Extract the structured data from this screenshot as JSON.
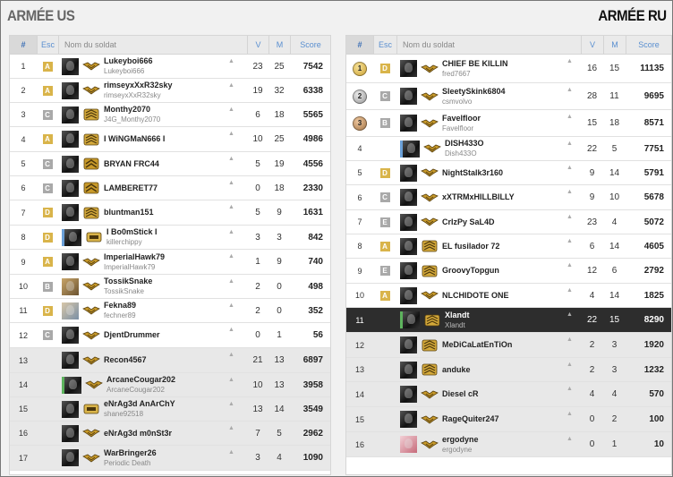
{
  "teams": {
    "left_title": "ARMÉE US",
    "right_title": "ARMÉE RU"
  },
  "headers": {
    "rank": "#",
    "esc": "Esc",
    "name": "Nom du soldat",
    "v": "V",
    "m": "M",
    "score": "Score"
  },
  "colors": {
    "esc_A": "#d9b44a",
    "esc_B": "#a9a9a9",
    "esc_C": "#a9a9a9",
    "esc_D": "#d9b44a",
    "esc_E": "#a9a9a9",
    "self_row": "#2d2d2d",
    "header_accent": "#5a8fd0"
  },
  "us_rows": [
    {
      "rank": "1",
      "esc": "A",
      "name": "Lukeyboi666",
      "sub": "Lukeyboi666",
      "v": "23",
      "m": "25",
      "score": "7542",
      "insig": "chevron-wings",
      "avatar": "dark"
    },
    {
      "rank": "2",
      "esc": "A",
      "name": "rimseyxXxR32sky",
      "sub": "rimseyxXxR32sky",
      "v": "19",
      "m": "32",
      "score": "6338",
      "insig": "chevron-wings",
      "avatar": "dark"
    },
    {
      "rank": "3",
      "esc": "C",
      "name": "Monthy2070",
      "sub": "J4G_Monthy2070",
      "v": "6",
      "m": "18",
      "score": "5565",
      "insig": "stripes",
      "avatar": "dark"
    },
    {
      "rank": "4",
      "esc": "A",
      "name": "I WiNGMaN666 I",
      "sub": "",
      "v": "10",
      "m": "25",
      "score": "4986",
      "insig": "stripes",
      "avatar": "dark"
    },
    {
      "rank": "5",
      "esc": "C",
      "name": "BRYAN FRC44",
      "sub": "",
      "v": "5",
      "m": "19",
      "score": "4556",
      "insig": "chevron",
      "avatar": "dark"
    },
    {
      "rank": "6",
      "esc": "C",
      "name": "LAMBERET77",
      "sub": "",
      "v": "0",
      "m": "18",
      "score": "2330",
      "insig": "chevron",
      "avatar": "dark"
    },
    {
      "rank": "7",
      "esc": "D",
      "name": "bluntman151",
      "sub": "",
      "v": "5",
      "m": "9",
      "score": "1631",
      "insig": "stripes",
      "avatar": "dark"
    },
    {
      "rank": "8",
      "esc": "D",
      "name": "I Bo0mStick I",
      "sub": "killerchippy",
      "v": "3",
      "m": "3",
      "score": "842",
      "insig": "bar",
      "avatar": "blue"
    },
    {
      "rank": "9",
      "esc": "A",
      "name": "ImperialHawk79",
      "sub": "ImperialHawk79",
      "v": "1",
      "m": "9",
      "score": "740",
      "insig": "chevron-wings",
      "avatar": "dark"
    },
    {
      "rank": "10",
      "esc": "B",
      "name": "TossikSnake",
      "sub": "TossikSnake",
      "v": "2",
      "m": "0",
      "score": "498",
      "insig": "chevron-wings",
      "avatar": "sand"
    },
    {
      "rank": "11",
      "esc": "D",
      "name": "Fekna89",
      "sub": "fechner89",
      "v": "2",
      "m": "0",
      "score": "352",
      "insig": "chevron-wings",
      "avatar": "color"
    },
    {
      "rank": "12",
      "esc": "C",
      "name": "DjentDrummer",
      "sub": "",
      "v": "0",
      "m": "1",
      "score": "56",
      "insig": "chevron-wings",
      "avatar": "dark"
    },
    {
      "rank": "13",
      "esc": "",
      "name": "Recon4567",
      "sub": "",
      "v": "21",
      "m": "13",
      "score": "6897",
      "insig": "chevron-wings",
      "avatar": "dark"
    },
    {
      "rank": "14",
      "esc": "",
      "name": "ArcaneCougar202",
      "sub": "ArcaneCougar202",
      "v": "10",
      "m": "13",
      "score": "3958",
      "insig": "chevron-wings",
      "avatar": "green"
    },
    {
      "rank": "15",
      "esc": "",
      "name": "eNrAg3d AnArChY",
      "sub": "shane92518",
      "v": "13",
      "m": "14",
      "score": "3549",
      "insig": "bar",
      "avatar": "dark"
    },
    {
      "rank": "16",
      "esc": "",
      "name": "eNrAg3d m0nSt3r",
      "sub": "",
      "v": "7",
      "m": "5",
      "score": "2962",
      "insig": "chevron-wings",
      "avatar": "dark"
    },
    {
      "rank": "17",
      "esc": "",
      "name": "WarBringer26",
      "sub": "Periodic Death",
      "v": "3",
      "m": "4",
      "score": "1090",
      "insig": "chevron-wings",
      "avatar": "dark"
    }
  ],
  "ru_rows": [
    {
      "rank": "1",
      "medal": "gold",
      "esc": "D",
      "name": "CHIEF BE KILLIN",
      "sub": "fred7667",
      "v": "16",
      "m": "15",
      "score": "11135",
      "insig": "chevron-wings",
      "avatar": "dark"
    },
    {
      "rank": "2",
      "medal": "silver",
      "esc": "C",
      "name": "SleetySkink6804",
      "sub": "csmvolvo",
      "v": "28",
      "m": "11",
      "score": "9695",
      "insig": "chevron-wings",
      "avatar": "dark"
    },
    {
      "rank": "3",
      "medal": "bronze",
      "esc": "B",
      "name": "Favelfloor",
      "sub": "Favelfloor",
      "v": "15",
      "m": "18",
      "score": "8571",
      "insig": "chevron-wings",
      "avatar": "dark"
    },
    {
      "rank": "4",
      "esc": "",
      "name": "DISH433O",
      "sub": "Dish433O",
      "v": "22",
      "m": "5",
      "score": "7751",
      "insig": "chevron-wings",
      "avatar": "blue"
    },
    {
      "rank": "5",
      "esc": "D",
      "name": "NightStalk3r160",
      "sub": "",
      "v": "9",
      "m": "14",
      "score": "5791",
      "insig": "chevron-wings",
      "avatar": "dark"
    },
    {
      "rank": "6",
      "esc": "C",
      "name": "xXTRMxHILLBILLY",
      "sub": "",
      "v": "9",
      "m": "10",
      "score": "5678",
      "insig": "chevron-wings",
      "avatar": "dark"
    },
    {
      "rank": "7",
      "esc": "E",
      "name": "CrIzPy SaL4D",
      "sub": "",
      "v": "23",
      "m": "4",
      "score": "5072",
      "insig": "chevron-wings",
      "avatar": "dark"
    },
    {
      "rank": "8",
      "esc": "A",
      "name": "EL fusilador 72",
      "sub": "",
      "v": "6",
      "m": "14",
      "score": "4605",
      "insig": "stripes",
      "avatar": "dark"
    },
    {
      "rank": "9",
      "esc": "E",
      "name": "GroovyTopgun",
      "sub": "",
      "v": "12",
      "m": "6",
      "score": "2792",
      "insig": "stripes",
      "avatar": "dark"
    },
    {
      "rank": "10",
      "esc": "A",
      "name": "NLCHIDOTE ONE",
      "sub": "",
      "v": "4",
      "m": "14",
      "score": "1825",
      "insig": "chevron-wings",
      "avatar": "dark"
    },
    {
      "rank": "11",
      "esc": "",
      "name": "Xlandt",
      "sub": "Xlandt",
      "v": "22",
      "m": "15",
      "score": "8290",
      "insig": "stripes",
      "avatar": "green",
      "self": true
    },
    {
      "rank": "12",
      "esc": "",
      "name": "MeDiCaLatEnTiOn",
      "sub": "",
      "v": "2",
      "m": "3",
      "score": "1920",
      "insig": "stripes",
      "avatar": "dark"
    },
    {
      "rank": "13",
      "esc": "",
      "name": "anduke",
      "sub": "",
      "v": "2",
      "m": "3",
      "score": "1232",
      "insig": "stripes",
      "avatar": "dark"
    },
    {
      "rank": "14",
      "esc": "",
      "name": "Diesel cR",
      "sub": "",
      "v": "4",
      "m": "4",
      "score": "570",
      "insig": "chevron-wings",
      "avatar": "dark"
    },
    {
      "rank": "15",
      "esc": "",
      "name": "RageQuiter247",
      "sub": "",
      "v": "0",
      "m": "2",
      "score": "100",
      "insig": "chevron-wings",
      "avatar": "dark"
    },
    {
      "rank": "16",
      "esc": "",
      "name": "ergodyne",
      "sub": "ergodyne",
      "v": "0",
      "m": "1",
      "score": "10",
      "insig": "chevron-wings",
      "avatar": "pink"
    }
  ]
}
